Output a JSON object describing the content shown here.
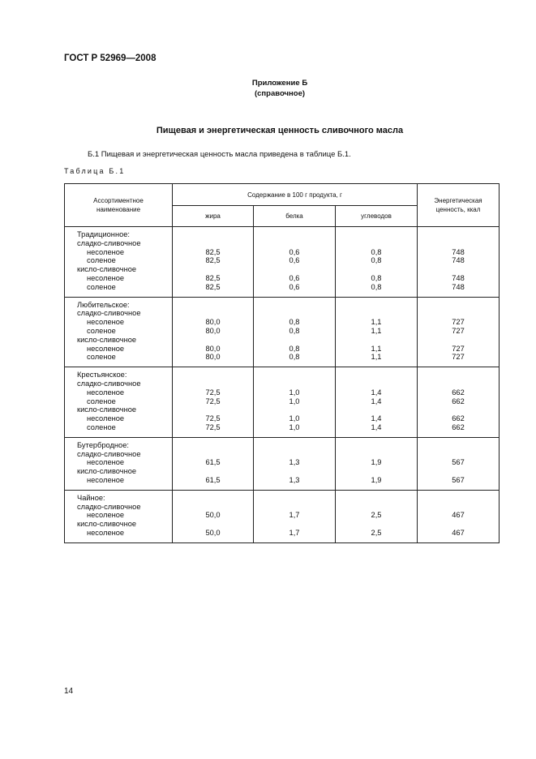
{
  "header": {
    "doc_code": "ГОСТ Р 52969—2008"
  },
  "annex": {
    "title": "Приложение Б",
    "note": "(справочное)"
  },
  "heading": "Пищевая и энергетическая ценность сливочного масла",
  "paragraph": "Б.1  Пищевая и энергетическая ценность масла приведена в таблице Б.1.",
  "table_caption": "Таблица Б.1",
  "table": {
    "col_name": "Ассортиментное наименование",
    "col_content": "Содержание в 100 г продукта, г",
    "col_fat": "жира",
    "col_protein": "белка",
    "col_carbs": "углеводов",
    "col_energy": "Энергетическая ценность, ккал",
    "groups": [
      {
        "name": "Традиционное:",
        "lines": [
          {
            "label": "сладко-сливочное",
            "sub": false
          },
          {
            "label": "несоленое",
            "sub": true,
            "v": [
              "82,5",
              "0,6",
              "0,8",
              "748"
            ]
          },
          {
            "label": "соленое",
            "sub": true,
            "v": [
              "82,5",
              "0,6",
              "0,8",
              "748"
            ]
          },
          {
            "label": "кисло-сливочное",
            "sub": false
          },
          {
            "label": "несоленое",
            "sub": true,
            "v": [
              "82,5",
              "0,6",
              "0,8",
              "748"
            ]
          },
          {
            "label": "соленое",
            "sub": true,
            "v": [
              "82,5",
              "0,6",
              "0,8",
              "748"
            ]
          }
        ]
      },
      {
        "name": "Любительское:",
        "lines": [
          {
            "label": "сладко-сливочное",
            "sub": false
          },
          {
            "label": "несоленое",
            "sub": true,
            "v": [
              "80,0",
              "0,8",
              "1,1",
              "727"
            ]
          },
          {
            "label": "соленое",
            "sub": true,
            "v": [
              "80,0",
              "0,8",
              "1,1",
              "727"
            ]
          },
          {
            "label": "кисло-сливочное",
            "sub": false
          },
          {
            "label": "несоленое",
            "sub": true,
            "v": [
              "80,0",
              "0,8",
              "1,1",
              "727"
            ]
          },
          {
            "label": "соленое",
            "sub": true,
            "v": [
              "80,0",
              "0,8",
              "1,1",
              "727"
            ]
          }
        ]
      },
      {
        "name": "Крестьянское:",
        "lines": [
          {
            "label": "сладко-сливочное",
            "sub": false
          },
          {
            "label": "несоленое",
            "sub": true,
            "v": [
              "72,5",
              "1,0",
              "1,4",
              "662"
            ]
          },
          {
            "label": "соленое",
            "sub": true,
            "v": [
              "72,5",
              "1,0",
              "1,4",
              "662"
            ]
          },
          {
            "label": "кисло-сливочное",
            "sub": false
          },
          {
            "label": "несоленое",
            "sub": true,
            "v": [
              "72,5",
              "1,0",
              "1,4",
              "662"
            ]
          },
          {
            "label": "соленое",
            "sub": true,
            "v": [
              "72,5",
              "1,0",
              "1,4",
              "662"
            ]
          }
        ]
      },
      {
        "name": "Бутербродное:",
        "lines": [
          {
            "label": "сладко-сливочное",
            "sub": false
          },
          {
            "label": "несоленое",
            "sub": true,
            "v": [
              "61,5",
              "1,3",
              "1,9",
              "567"
            ]
          },
          {
            "label": "кисло-сливочное",
            "sub": false
          },
          {
            "label": "несоленое",
            "sub": true,
            "v": [
              "61,5",
              "1,3",
              "1,9",
              "567"
            ]
          }
        ]
      },
      {
        "name": "Чайное:",
        "lines": [
          {
            "label": "сладко-сливочное",
            "sub": false
          },
          {
            "label": "несоленое",
            "sub": true,
            "v": [
              "50,0",
              "1,7",
              "2,5",
              "467"
            ]
          },
          {
            "label": "кисло-сливочное",
            "sub": false
          },
          {
            "label": "несоленое",
            "sub": true,
            "v": [
              "50,0",
              "1,7",
              "2,5",
              "467"
            ]
          }
        ]
      }
    ]
  },
  "page_number": "14"
}
